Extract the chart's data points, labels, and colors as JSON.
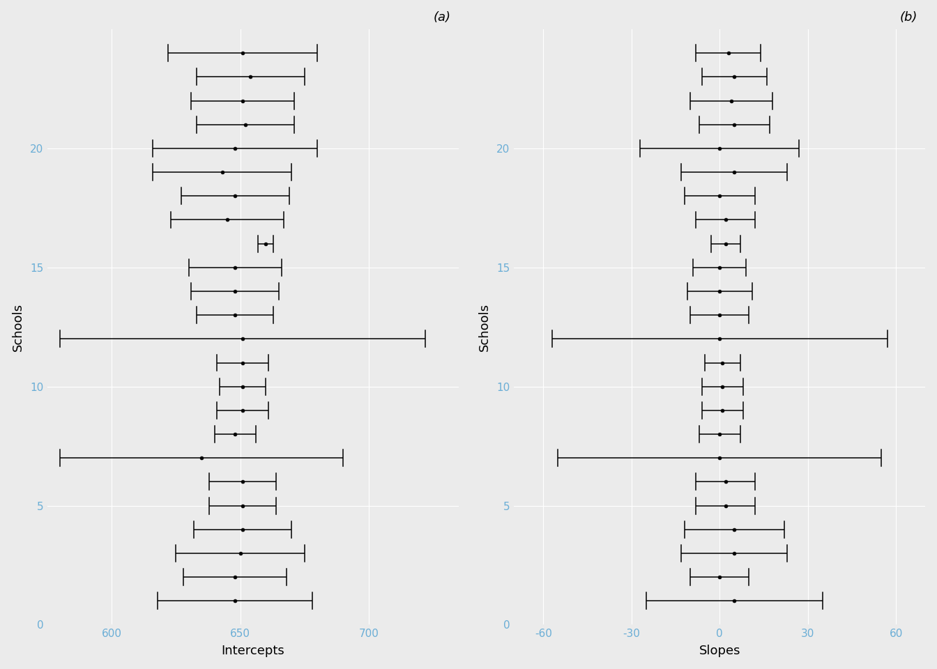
{
  "intercepts": {
    "estimates": [
      648,
      648,
      650,
      651,
      651,
      651,
      635,
      648,
      651,
      651,
      651,
      651,
      648,
      648,
      648,
      660,
      645,
      648,
      643,
      648,
      652,
      651,
      654,
      651
    ],
    "lower": [
      618,
      628,
      625,
      632,
      638,
      638,
      580,
      640,
      641,
      642,
      641,
      580,
      633,
      631,
      630,
      657,
      623,
      627,
      616,
      616,
      633,
      631,
      633,
      622
    ],
    "upper": [
      678,
      668,
      675,
      670,
      664,
      664,
      690,
      656,
      661,
      660,
      661,
      722,
      663,
      665,
      666,
      663,
      667,
      669,
      670,
      680,
      671,
      671,
      675,
      680
    ]
  },
  "slopes": {
    "estimates": [
      5,
      0,
      5,
      5,
      2,
      2,
      0,
      0,
      1,
      1,
      1,
      0,
      0,
      0,
      0,
      2,
      2,
      0,
      5,
      0,
      5,
      4,
      5,
      3
    ],
    "lower": [
      -25,
      -10,
      -13,
      -12,
      -8,
      -8,
      -55,
      -7,
      -6,
      -6,
      -5,
      -57,
      -10,
      -11,
      -9,
      -3,
      -8,
      -12,
      -13,
      -27,
      -7,
      -10,
      -6,
      -8
    ],
    "upper": [
      35,
      10,
      23,
      22,
      12,
      12,
      55,
      7,
      8,
      8,
      7,
      57,
      10,
      11,
      9,
      7,
      12,
      12,
      23,
      27,
      17,
      18,
      16,
      14
    ]
  },
  "background_color": "#ebebeb",
  "grid_color": "#ffffff",
  "point_color": "black",
  "line_color": "black",
  "tick_color": "#6baed6",
  "title_a": "(a)",
  "title_b": "(b)",
  "xlabel_a": "Intercepts",
  "xlabel_b": "Slopes",
  "ylabel": "Schools",
  "xlim_a": [
    575,
    735
  ],
  "xlim_b": [
    -70,
    70
  ],
  "xticks_a": [
    600,
    650,
    700
  ],
  "xticks_b": [
    -60,
    -30,
    0,
    30,
    60
  ],
  "ytick_positions": [
    0,
    5,
    10,
    15,
    20
  ],
  "n_schools": 24
}
